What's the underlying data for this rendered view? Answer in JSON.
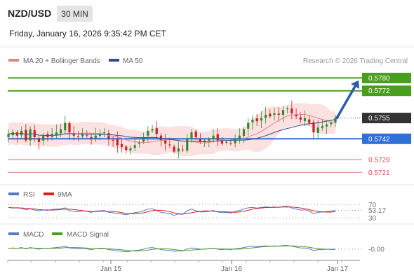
{
  "header": {
    "symbol": "NZD/USD",
    "timeframe": "30 MIN",
    "datetime": "Friday, January 16, 2026 9:35:42 PM CET"
  },
  "legend": {
    "ma20": "MA 20 + Bollinger Bands",
    "ma50": "MA 50",
    "research": "Research © 2026 Trading Central"
  },
  "colors": {
    "resistance": "#4a9e1e",
    "support": "#2f6fd8",
    "minor": "#e05050",
    "price": "#333333",
    "arrow": "#2a5ca8",
    "ma20": "#f08080",
    "ma50": "#2c4f8c",
    "band": "#fcdcdc",
    "candle_up": "#2e8b2e",
    "candle_down": "#c81e1e"
  },
  "chart_data": [
    {
      "type": "candlestick",
      "title": "NZD/USD",
      "ylim": [
        0.5715,
        0.5785
      ],
      "x_ticks": [
        "Jan 15",
        "Jan 16",
        "Jan 17"
      ],
      "levels": [
        {
          "value": 0.578,
          "label": "0.5780",
          "kind": "resistance",
          "tag": true
        },
        {
          "value": 0.5772,
          "label": "0.5772",
          "kind": "resistance",
          "tag": true
        },
        {
          "value": 0.5755,
          "label": "0.5755",
          "kind": "price",
          "tag": true
        },
        {
          "value": 0.5742,
          "label": "0.5742",
          "kind": "support",
          "tag": true
        },
        {
          "value": 0.5729,
          "label": "0.5729",
          "kind": "minor",
          "tag": false
        },
        {
          "value": 0.5721,
          "label": "0.5721",
          "kind": "minor",
          "tag": false
        }
      ],
      "close_path": [
        0.5745,
        0.5746,
        0.5744,
        0.5747,
        0.5741,
        0.5748,
        0.5743,
        0.574,
        0.5744,
        0.5743,
        0.5745,
        0.5746,
        0.5748,
        0.5752,
        0.5746,
        0.5744,
        0.5743,
        0.5745,
        0.5744,
        0.5742,
        0.5744,
        0.5745,
        0.5746,
        0.5742,
        0.5741,
        0.5738,
        0.5737,
        0.5735,
        0.5736,
        0.5738,
        0.574,
        0.5743,
        0.5747,
        0.5748,
        0.5745,
        0.5741,
        0.5739,
        0.5738,
        0.5734,
        0.5736,
        0.5735,
        0.5742,
        0.5746,
        0.5743,
        0.574,
        0.5741,
        0.5742,
        0.5744,
        0.5741,
        0.5739,
        0.574,
        0.5739,
        0.5742,
        0.5744,
        0.5748,
        0.5752,
        0.5754,
        0.5753,
        0.5755,
        0.5757,
        0.5756,
        0.5758,
        0.5757,
        0.576,
        0.5761,
        0.5758,
        0.5756,
        0.5754,
        0.5755,
        0.5752,
        0.5746,
        0.5749,
        0.575,
        0.5751,
        0.5752,
        0.5755
      ],
      "rsi": {
        "name": "RSI",
        "signal_name": "9MA",
        "last": "53.17",
        "levels": [
          "70",
          "30"
        ],
        "values": [
          62,
          60,
          61,
          59,
          55,
          58,
          54,
          52,
          55,
          53,
          56,
          57,
          58,
          61,
          52,
          50,
          49,
          52,
          50,
          47,
          51,
          52,
          53,
          47,
          46,
          43,
          42,
          40,
          43,
          46,
          48,
          52,
          57,
          58,
          53,
          47,
          45,
          44,
          38,
          42,
          41,
          52,
          57,
          52,
          48,
          49,
          50,
          53,
          48,
          46,
          47,
          45,
          50,
          53,
          58,
          61,
          62,
          60,
          62,
          64,
          62,
          64,
          62,
          65,
          66,
          60,
          57,
          54,
          55,
          51,
          43,
          47,
          48,
          50,
          51,
          53
        ]
      },
      "macd": {
        "name": "MACD",
        "signal_name": "MACD Signal",
        "last": "-0.00",
        "values": [
          0.2,
          0.3,
          0.2,
          0.4,
          0.1,
          0.4,
          0.2,
          0.0,
          0.2,
          0.1,
          0.3,
          0.4,
          0.5,
          0.7,
          0.3,
          0.2,
          0.1,
          0.2,
          0.1,
          -0.1,
          0.1,
          0.2,
          0.2,
          -0.1,
          -0.2,
          -0.4,
          -0.5,
          -0.6,
          -0.5,
          -0.3,
          -0.2,
          0.0,
          0.3,
          0.4,
          0.2,
          -0.1,
          -0.2,
          -0.3,
          -0.5,
          -0.4,
          -0.4,
          0.1,
          0.3,
          0.2,
          0.0,
          0.0,
          0.1,
          0.2,
          0.0,
          -0.1,
          0.0,
          -0.1,
          0.1,
          0.2,
          0.4,
          0.6,
          0.7,
          0.6,
          0.7,
          0.8,
          0.7,
          0.8,
          0.7,
          0.9,
          0.9,
          0.7,
          0.5,
          0.3,
          0.3,
          0.1,
          -0.3,
          -0.1,
          -0.1,
          0.0,
          0.0,
          0.0
        ]
      }
    }
  ]
}
